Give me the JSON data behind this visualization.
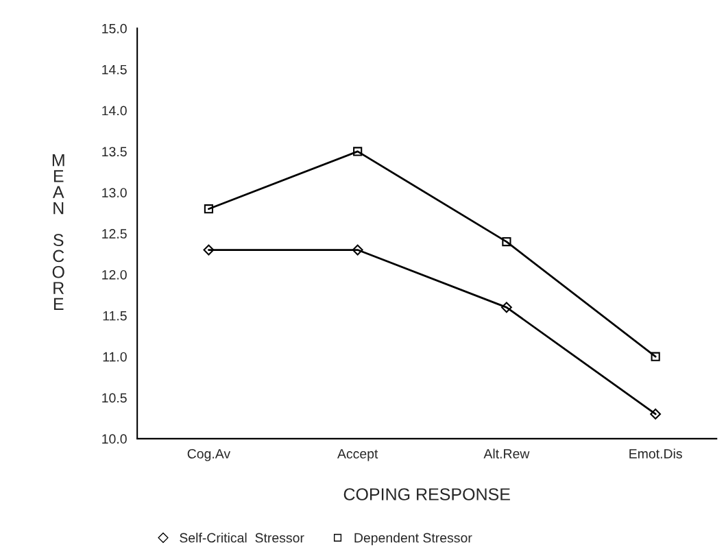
{
  "chart_data": {
    "type": "line",
    "categories": [
      "Cog.Av",
      "Accept",
      "Alt.Rew",
      "Emot.Dis"
    ],
    "xlabel": "COPING RESPONSE",
    "ylabel": "MEAN SCORE",
    "series": [
      {
        "name": "Self-Critical  Stressor",
        "color": "#000000",
        "marker": "diamond",
        "values": [
          12.3,
          12.3,
          11.6,
          10.3
        ]
      },
      {
        "name": "Dependent Stressor",
        "color": "#000000",
        "marker": "square",
        "values": [
          12.8,
          13.5,
          12.4,
          11.0
        ]
      }
    ],
    "ylim": [
      10,
      15
    ],
    "yticks": [
      {
        "value": 10,
        "label": "10.0"
      },
      {
        "value": 10.5,
        "label": "10.5"
      },
      {
        "value": 11,
        "label": "11.0"
      },
      {
        "value": 11.5,
        "label": "11.5"
      },
      {
        "value": 12,
        "label": "12.0"
      },
      {
        "value": 12.5,
        "label": "12.5"
      },
      {
        "value": 13,
        "label": "13.0"
      },
      {
        "value": 13.5,
        "label": "13.5"
      },
      {
        "value": 14,
        "label": "14.0"
      },
      {
        "value": 14.5,
        "label": "14.5"
      },
      {
        "value": 15,
        "label": "15.0"
      }
    ],
    "grid": false,
    "legend": "bottom",
    "line_style": "solid"
  }
}
